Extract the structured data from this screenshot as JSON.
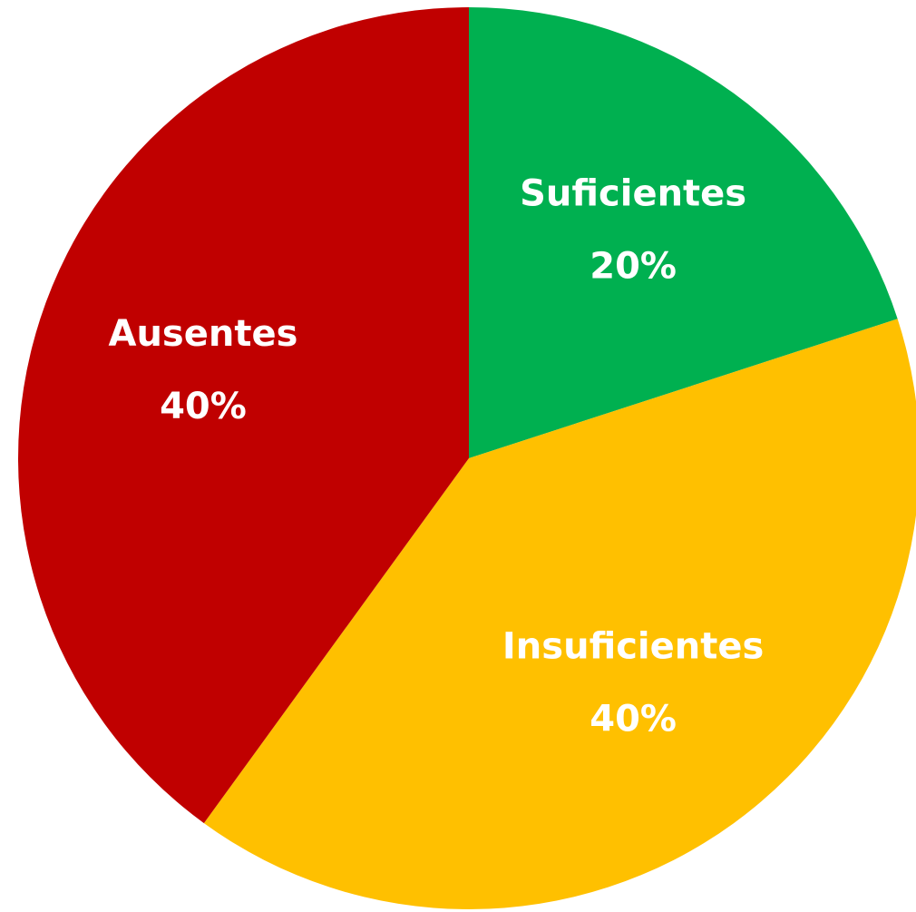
{
  "chart_data": {
    "type": "pie",
    "categories": [
      "Suficientes",
      "Insuficientes",
      "Ausentes"
    ],
    "values": [
      20,
      40,
      40
    ],
    "value_labels": [
      "20%",
      "40%",
      "40%"
    ],
    "colors": [
      "#00b050",
      "#ffc000",
      "#c00000"
    ]
  }
}
